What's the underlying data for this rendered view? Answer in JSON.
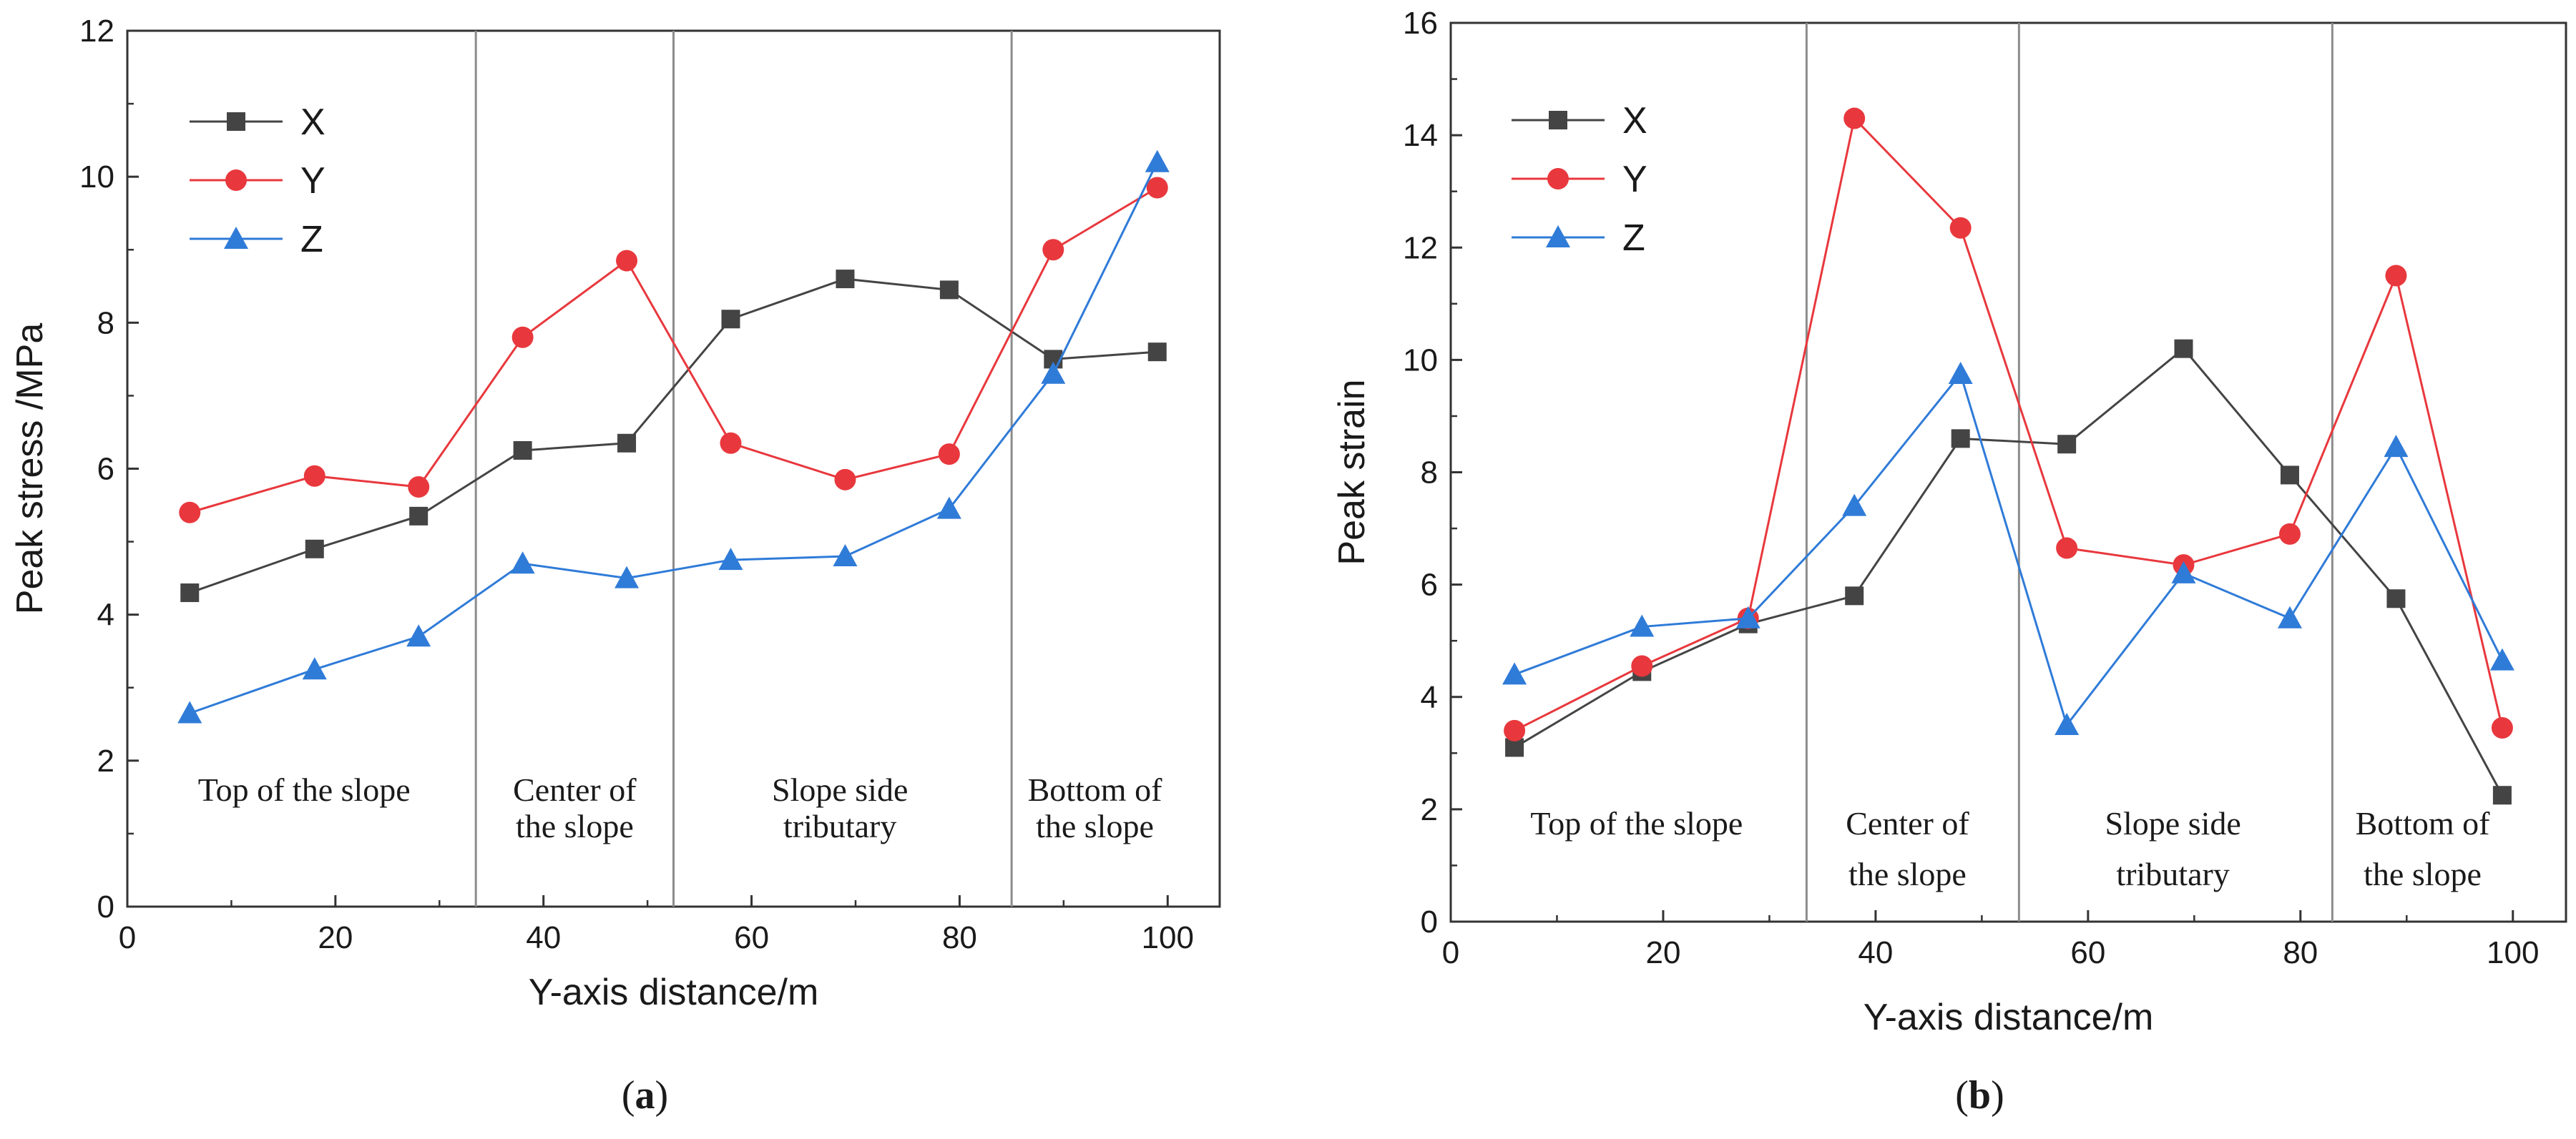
{
  "figure": {
    "panels": [
      {
        "caption_open": "(",
        "caption_letter": "a",
        "caption_close": ")",
        "regions": [
          {
            "line1": "Top of the slope",
            "line2": "",
            "center_x": 17
          },
          {
            "line1": "Center of",
            "line2": "the slope",
            "center_x": 43
          },
          {
            "line1": "Slope side",
            "line2": "tributary",
            "center_x": 68.5
          },
          {
            "line1": "Bottom of",
            "line2": "the slope",
            "center_x": 93
          }
        ],
        "region_label_y1": 1.45,
        "region_label_y2": 0.95
      },
      {
        "caption_open": "(",
        "caption_letter": "b",
        "caption_close": ")",
        "regions": [
          {
            "line1": "Top of the slope",
            "line2": "",
            "center_x": 17.5
          },
          {
            "line1": "Center of",
            "line2": "the slope",
            "center_x": 43
          },
          {
            "line1": "Slope side",
            "line2": "tributary",
            "center_x": 68
          },
          {
            "line1": "Bottom of",
            "line2": "the slope",
            "center_x": 91.5
          }
        ],
        "region_label_y1": 1.55,
        "region_label_y2": 0.65
      }
    ]
  },
  "chart_data": [
    {
      "type": "line",
      "title": "",
      "xlabel": "Y-axis distance/m",
      "ylabel": "Peak stress /MPa",
      "xlim": [
        0,
        105
      ],
      "ylim": [
        0,
        12
      ],
      "xticks": [
        0,
        20,
        40,
        60,
        80,
        100
      ],
      "yticks": [
        0,
        2,
        4,
        6,
        8,
        10,
        12
      ],
      "grid": false,
      "legend_position": "top-left",
      "region_dividers": [
        33.5,
        52.5,
        85
      ],
      "x": [
        6,
        18,
        28,
        38,
        48,
        58,
        69,
        79,
        89,
        99
      ],
      "series": [
        {
          "name": "X",
          "color": "#444444",
          "marker": "square",
          "values": [
            4.3,
            4.9,
            5.35,
            6.25,
            6.35,
            8.05,
            8.6,
            8.45,
            7.5,
            7.6
          ]
        },
        {
          "name": "Y",
          "color": "#e8383d",
          "marker": "circle",
          "values": [
            5.4,
            5.9,
            5.75,
            7.8,
            8.85,
            6.35,
            5.85,
            6.2,
            9.0,
            9.85
          ]
        },
        {
          "name": "Z",
          "color": "#2f7bd8",
          "marker": "triangle",
          "values": [
            2.65,
            3.25,
            3.7,
            4.7,
            4.5,
            4.75,
            4.8,
            5.45,
            7.3,
            10.2
          ]
        }
      ]
    },
    {
      "type": "line",
      "title": "",
      "xlabel": "Y-axis distance/m",
      "ylabel": "Peak strain",
      "xlim": [
        0,
        105
      ],
      "ylim": [
        0,
        16
      ],
      "xticks": [
        0,
        20,
        40,
        60,
        80,
        100
      ],
      "yticks": [
        0,
        2,
        4,
        6,
        8,
        10,
        12,
        14,
        16
      ],
      "grid": false,
      "legend_position": "top-left",
      "region_dividers": [
        33.5,
        53.5,
        83
      ],
      "x": [
        6,
        18,
        28,
        38,
        48,
        58,
        69,
        79,
        89,
        99
      ],
      "series": [
        {
          "name": "X",
          "color": "#444444",
          "marker": "square",
          "values": [
            3.1,
            4.45,
            5.3,
            5.8,
            8.6,
            8.5,
            10.2,
            7.95,
            5.75,
            2.25
          ]
        },
        {
          "name": "Y",
          "color": "#e8383d",
          "marker": "circle",
          "values": [
            3.4,
            4.55,
            5.4,
            14.3,
            12.35,
            6.65,
            6.35,
            6.9,
            11.5,
            3.45
          ]
        },
        {
          "name": "Z",
          "color": "#2f7bd8",
          "marker": "triangle",
          "values": [
            4.4,
            5.25,
            5.4,
            7.4,
            9.75,
            3.5,
            6.2,
            5.4,
            8.45,
            4.65
          ]
        }
      ]
    }
  ]
}
